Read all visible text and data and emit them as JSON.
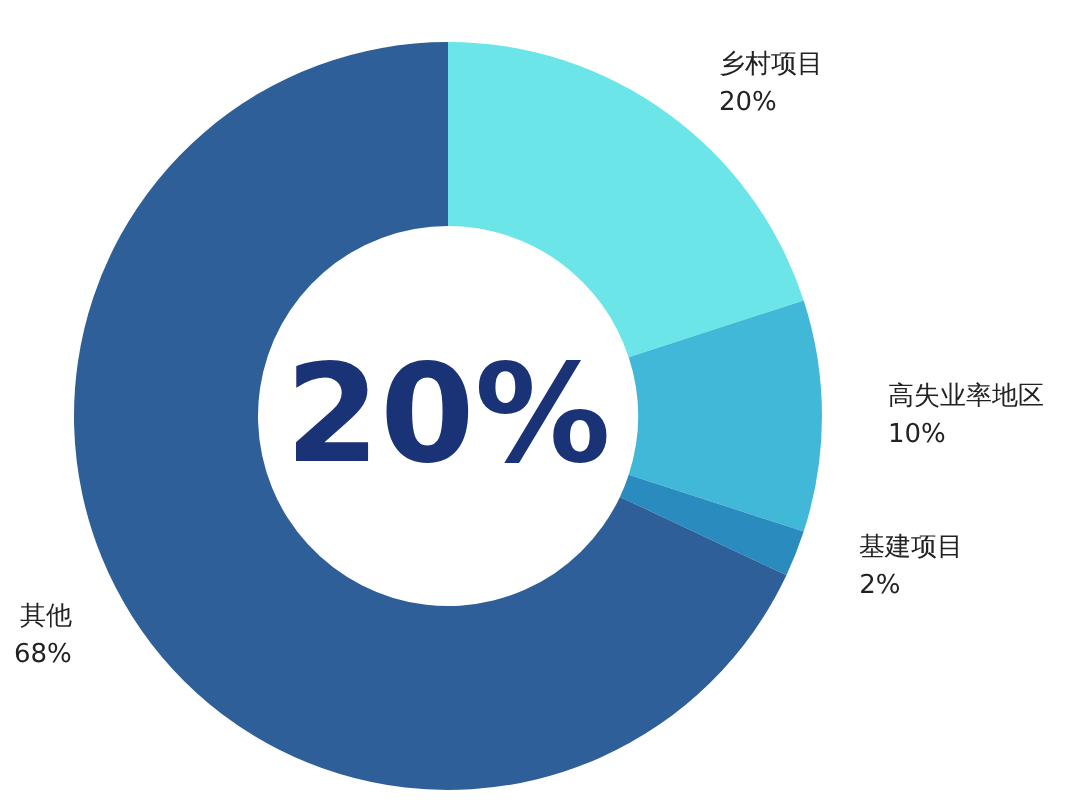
{
  "chart_data": {
    "type": "donut",
    "categories": [
      "乡村项目",
      "高失业率地区",
      "基建项目",
      "其他"
    ],
    "values": [
      20,
      10,
      2,
      68
    ],
    "value_labels": [
      "20%",
      "10%",
      "2%",
      "68%"
    ],
    "colors": [
      "#6be5e8",
      "#42b8d8",
      "#2a8bbf",
      "#2e5f98"
    ],
    "annotations": [
      "20%"
    ],
    "legend": false
  }
}
